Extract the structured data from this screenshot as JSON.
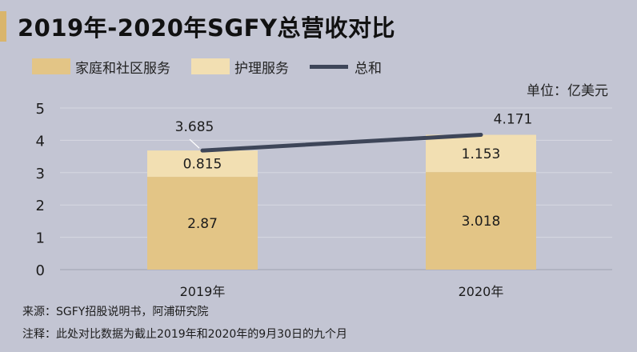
{
  "title": "2019年-2020年SGFY总营收对比",
  "unit": "单位：亿美元",
  "source": "来源：SGFY招股说明书，阿浦研究院",
  "note": "注释：此处对比数据为截止2019年和2020年的9月30日的九个月",
  "colors": {
    "background": "#c3c5d3",
    "accent": "#d9b56c",
    "family_community": "#e3c586",
    "nursing": "#f2dfb2",
    "total_line": "#3e4659"
  },
  "chart_data": {
    "type": "bar",
    "stacked": true,
    "categories": [
      "2019年",
      "2020年"
    ],
    "series": [
      {
        "name": "家庭和社区服务",
        "values": [
          2.87,
          3.018
        ],
        "labels": [
          "2.87",
          "3.018"
        ]
      },
      {
        "name": "护理服务",
        "values": [
          0.815,
          1.153
        ],
        "labels": [
          "0.815",
          "1.153"
        ]
      }
    ],
    "line": {
      "name": "总和",
      "values": [
        3.685,
        4.171
      ],
      "labels": [
        "3.685",
        "4.171"
      ]
    },
    "yticks": [
      "0",
      "1",
      "2",
      "3",
      "4",
      "5"
    ],
    "ylim": [
      0,
      5
    ],
    "grid": true,
    "legend_position": "top-left"
  }
}
